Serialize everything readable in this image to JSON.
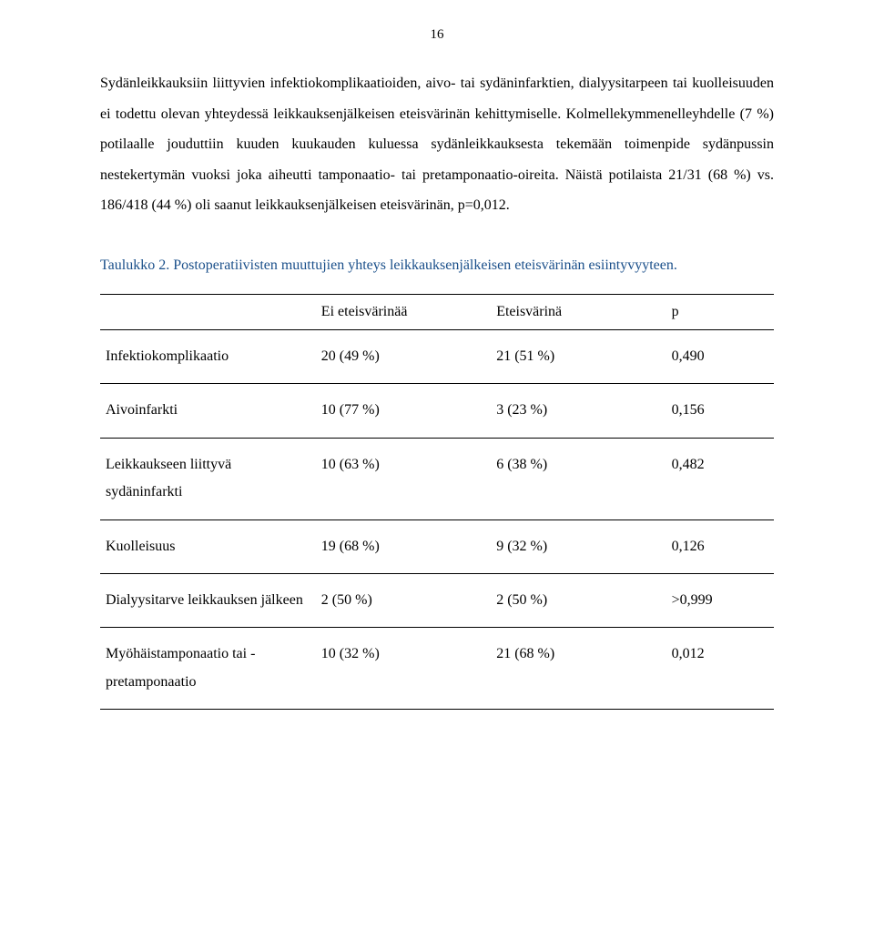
{
  "page_number": "16",
  "paragraph1": "Sydänleikkauksiin liittyvien infektiokomplikaatioiden, aivo- tai sydäninfarktien, dialyysitarpeen tai kuolleisuuden ei todettu olevan yhteydessä leikkauksenjälkeisen eteisvärinän kehittymiselle. Kolmellekymmenelleyhdelle (7 %) potilaalle jouduttiin kuuden kuukauden kuluessa sydänleikkauksesta tekemään toimenpide sydänpussin nestekertymän vuoksi joka aiheutti tamponaatio- tai pretamponaatio-oireita. Näistä potilaista 21/31 (68 %) vs. 186/418 (44 %) oli saanut leikkauksenjälkeisen eteisvärinän, p=0,012.",
  "table_caption": "Taulukko 2. Postoperatiivisten muuttujien yhteys leikkauksenjälkeisen eteisvärinän esiintyvyyteen.",
  "table": {
    "header": {
      "c0": "",
      "c1": "Ei eteisvärinää",
      "c2": "Eteisvärinä",
      "c3": "p"
    },
    "rows": [
      {
        "label": "Infektiokomplikaatio",
        "a": "20 (49 %)",
        "b": "21 (51 %)",
        "p": "0,490"
      },
      {
        "label": "Aivoinfarkti",
        "a": "10 (77 %)",
        "b": "3 (23 %)",
        "p": "0,156"
      },
      {
        "label": "Leikkaukseen liittyvä sydäninfarkti",
        "a": "10 (63 %)",
        "b": "6 (38 %)",
        "p": "0,482"
      },
      {
        "label": "Kuolleisuus",
        "a": "19 (68 %)",
        "b": "9 (32 %)",
        "p": "0,126"
      },
      {
        "label": "Dialyysitarve leikkauksen jälkeen",
        "a": "2 (50 %)",
        "b": "2 (50 %)",
        "p": ">0,999"
      },
      {
        "label": "Myöhäistamponaatio tai -pretamponaatio",
        "a": "10 (32 %)",
        "b": "21 (68 %)",
        "p": "0,012"
      }
    ]
  },
  "colors": {
    "text": "#000000",
    "caption": "#1a4f8a",
    "rule": "#000000",
    "background": "#ffffff"
  },
  "typography": {
    "body_font_family": "Times New Roman",
    "body_font_size_pt": 12,
    "line_height": 2.1
  }
}
